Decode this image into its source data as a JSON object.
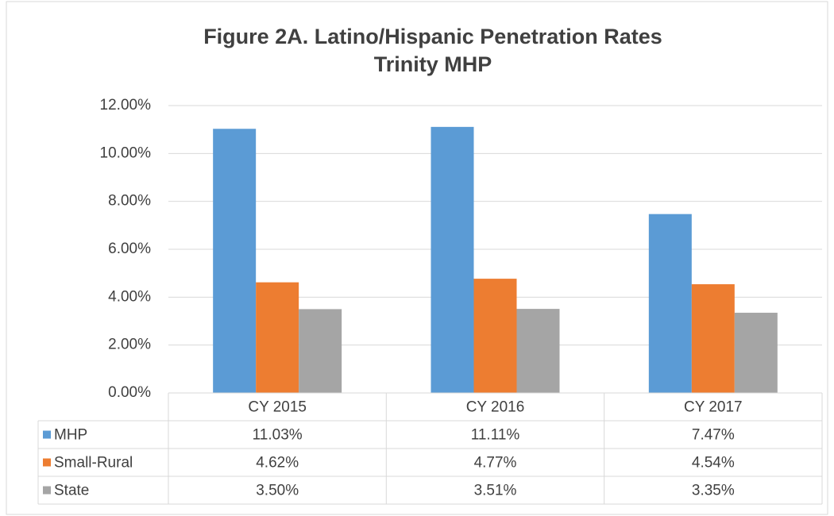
{
  "chart_data": {
    "type": "bar",
    "title": "Figure 2A. Latino/Hispanic Penetration Rates",
    "subtitle": "Trinity MHP",
    "categories": [
      "CY 2015",
      "CY 2016",
      "CY 2017"
    ],
    "series": [
      {
        "name": "MHP",
        "color": "#5b9bd5",
        "values": [
          11.03,
          11.11,
          7.47
        ],
        "value_labels": [
          "11.03%",
          "11.11%",
          "7.47%"
        ]
      },
      {
        "name": "Small-Rural",
        "color": "#ed7d31",
        "values": [
          4.62,
          4.77,
          4.54
        ],
        "value_labels": [
          "4.62%",
          "4.77%",
          "4.54%"
        ]
      },
      {
        "name": "State",
        "color": "#a5a5a5",
        "values": [
          3.5,
          3.51,
          3.35
        ],
        "value_labels": [
          "3.50%",
          "3.51%",
          "3.35%"
        ]
      }
    ],
    "ylim": [
      0,
      12
    ],
    "yticks": [
      {
        "value": 0,
        "label": "0.00%"
      },
      {
        "value": 2,
        "label": "2.00%"
      },
      {
        "value": 4,
        "label": "4.00%"
      },
      {
        "value": 6,
        "label": "6.00%"
      },
      {
        "value": 8,
        "label": "8.00%"
      },
      {
        "value": 10,
        "label": "10.00%"
      },
      {
        "value": 12,
        "label": "12.00%"
      }
    ],
    "grid": true
  }
}
